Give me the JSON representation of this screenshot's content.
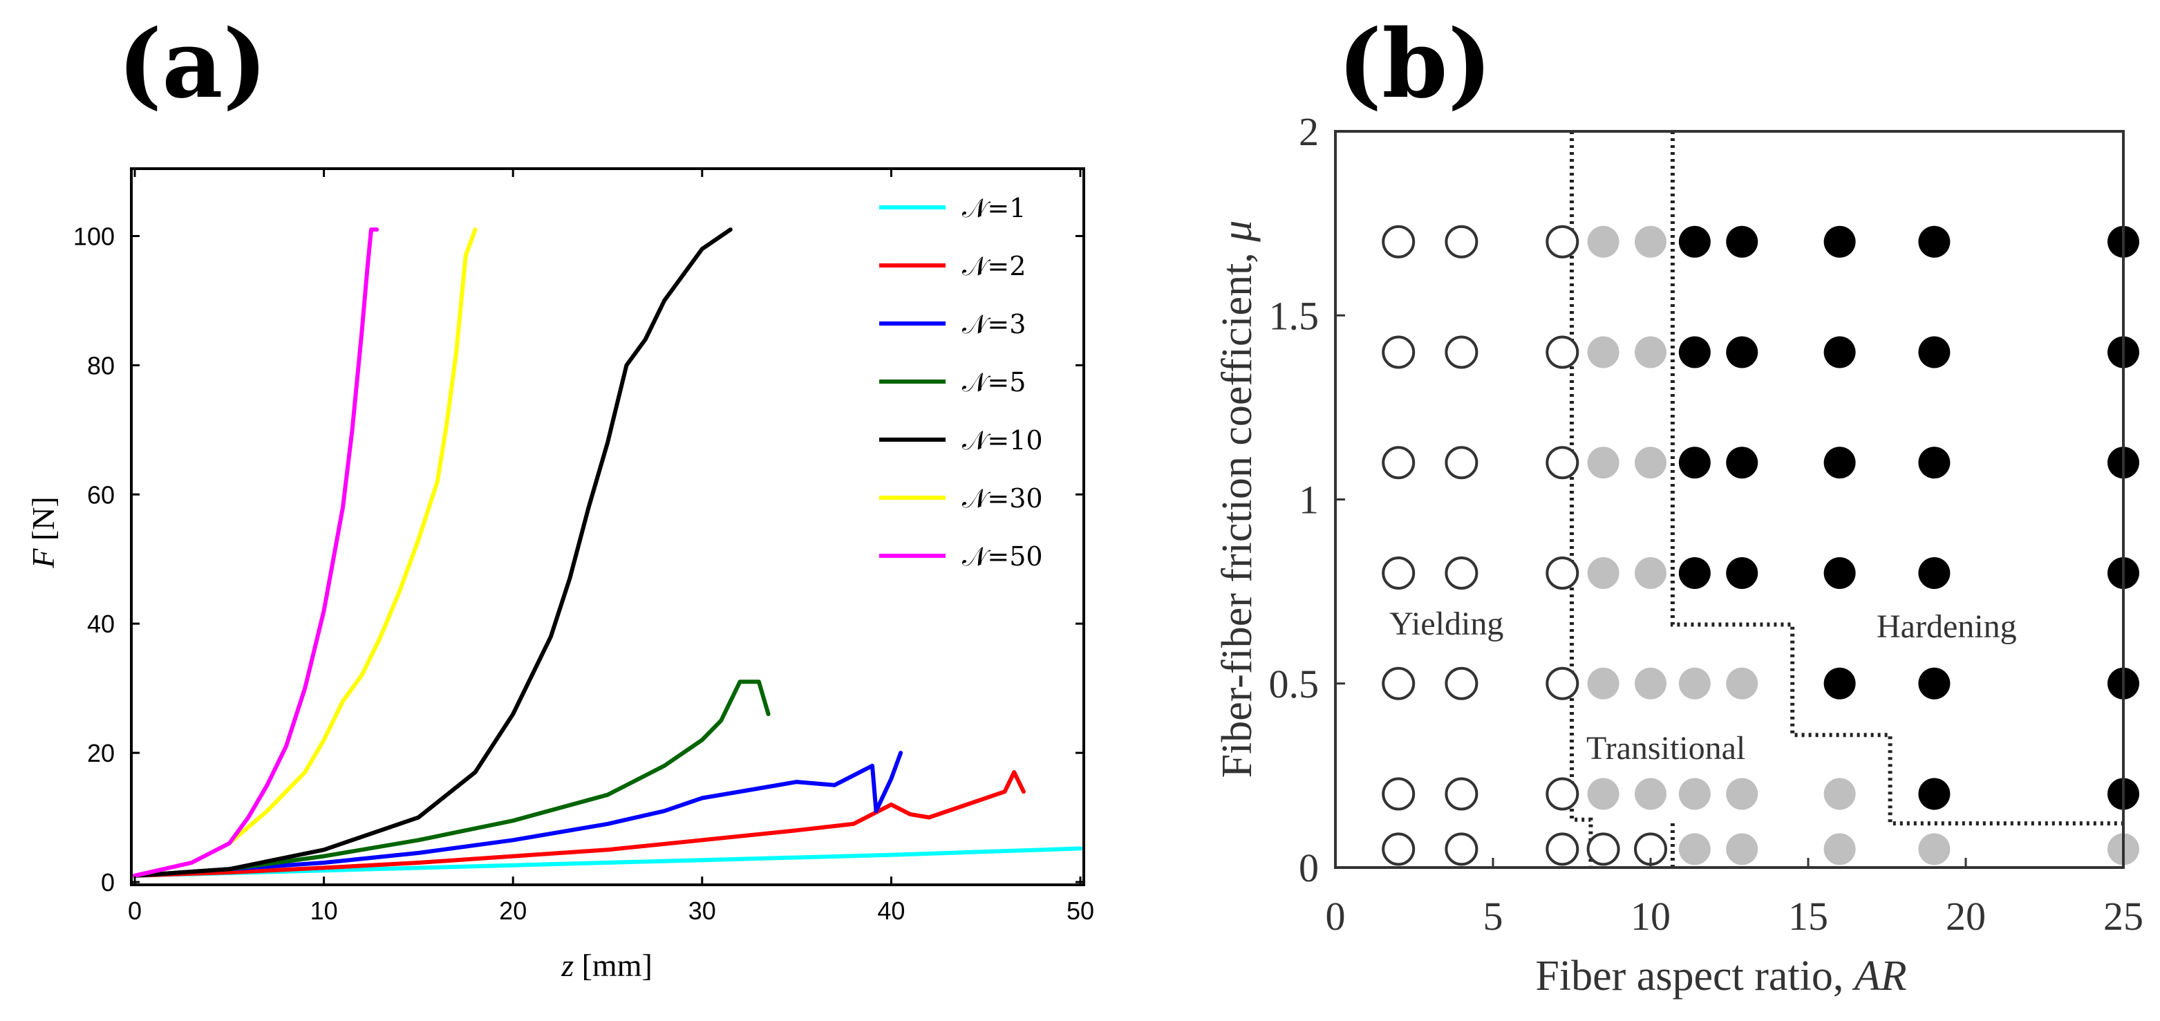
{
  "panels": {
    "a": "(a)",
    "b": "(b)"
  },
  "chart_data": [
    {
      "type": "line",
      "xlabel_italic": "z",
      "xlabel_unit": " [mm]",
      "ylabel_italic": "F",
      "ylabel_unit": " [N]",
      "xlim": [
        0,
        50
      ],
      "ylim": [
        0,
        110
      ],
      "xticks": [
        0,
        10,
        20,
        30,
        40,
        50
      ],
      "yticks": [
        0,
        20,
        40,
        60,
        80,
        100
      ],
      "legend_position": "top-right",
      "series": [
        {
          "name": "𝒩=1",
          "color": "#00ffff",
          "points": [
            [
              0,
              1
            ],
            [
              10,
              1.8
            ],
            [
              20,
              2.6
            ],
            [
              30,
              3.4
            ],
            [
              40,
              4.2
            ],
            [
              50,
              5.2
            ]
          ]
        },
        {
          "name": "𝒩=2",
          "color": "#ff0000",
          "points": [
            [
              0,
              1
            ],
            [
              5,
              1.5
            ],
            [
              10,
              2.2
            ],
            [
              15,
              3
            ],
            [
              20,
              4
            ],
            [
              25,
              5
            ],
            [
              30,
              6.5
            ],
            [
              35,
              8
            ],
            [
              38,
              9
            ],
            [
              40,
              12
            ],
            [
              41,
              10.5
            ],
            [
              42,
              10
            ],
            [
              44,
              12
            ],
            [
              46,
              14
            ],
            [
              46.5,
              17
            ],
            [
              47,
              14
            ]
          ]
        },
        {
          "name": "𝒩=3",
          "color": "#0000ff",
          "points": [
            [
              0,
              1
            ],
            [
              5,
              2
            ],
            [
              10,
              3
            ],
            [
              15,
              4.5
            ],
            [
              20,
              6.5
            ],
            [
              25,
              9
            ],
            [
              28,
              11
            ],
            [
              30,
              13
            ],
            [
              33,
              14.5
            ],
            [
              35,
              15.5
            ],
            [
              37,
              15
            ],
            [
              39,
              18
            ],
            [
              39.2,
              11
            ],
            [
              40,
              16
            ],
            [
              40.5,
              20
            ]
          ]
        },
        {
          "name": "𝒩=5",
          "color": "#006400",
          "points": [
            [
              0,
              1
            ],
            [
              5,
              2
            ],
            [
              10,
              4
            ],
            [
              15,
              6.5
            ],
            [
              20,
              9.5
            ],
            [
              25,
              13.5
            ],
            [
              28,
              18
            ],
            [
              30,
              22
            ],
            [
              31,
              25
            ],
            [
              32,
              31
            ],
            [
              33,
              31
            ],
            [
              33.5,
              26
            ]
          ]
        },
        {
          "name": "𝒩=10",
          "color": "#000000",
          "points": [
            [
              0,
              1
            ],
            [
              5,
              2
            ],
            [
              10,
              5
            ],
            [
              15,
              10
            ],
            [
              18,
              17
            ],
            [
              20,
              26
            ],
            [
              22,
              38
            ],
            [
              23,
              47
            ],
            [
              24,
              58
            ],
            [
              25,
              68
            ],
            [
              26,
              80
            ],
            [
              27,
              84
            ],
            [
              28,
              90
            ],
            [
              29,
              94
            ],
            [
              30,
              98
            ],
            [
              31.5,
              101
            ]
          ]
        },
        {
          "name": "𝒩=30",
          "color": "#ffff00",
          "points": [
            [
              0,
              1
            ],
            [
              3,
              3
            ],
            [
              5,
              6
            ],
            [
              7,
              11
            ],
            [
              9,
              17
            ],
            [
              10,
              22
            ],
            [
              11,
              28
            ],
            [
              12,
              32
            ],
            [
              13,
              38
            ],
            [
              14,
              45
            ],
            [
              15,
              53
            ],
            [
              16,
              62
            ],
            [
              16.5,
              71
            ],
            [
              17,
              82
            ],
            [
              17.5,
              97
            ],
            [
              18,
              101
            ]
          ]
        },
        {
          "name": "𝒩=50",
          "color": "#ff00ff",
          "points": [
            [
              0,
              1
            ],
            [
              3,
              3
            ],
            [
              5,
              6
            ],
            [
              6,
              10
            ],
            [
              7,
              15
            ],
            [
              8,
              21
            ],
            [
              9,
              30
            ],
            [
              10,
              42
            ],
            [
              11,
              58
            ],
            [
              11.5,
              70
            ],
            [
              12,
              85
            ],
            [
              12.3,
              95
            ],
            [
              12.5,
              101
            ],
            [
              12.8,
              101
            ]
          ]
        }
      ]
    },
    {
      "type": "scatter",
      "xlabel_text": "Fiber aspect ratio, ",
      "xlabel_italic": "AR",
      "ylabel_text": "Fiber-fiber friction coefficient, ",
      "ylabel_italic": "μ",
      "xlim": [
        0,
        25
      ],
      "ylim": [
        0,
        2
      ],
      "xticks": [
        0,
        5,
        10,
        15,
        20,
        25
      ],
      "yticks": [
        {
          "v": 0,
          "label": "0"
        },
        {
          "v": 0.5,
          "label": "0.5"
        },
        {
          "v": 1,
          "label": "1"
        },
        {
          "v": 1.5,
          "label": "1.5"
        },
        {
          "v": 2,
          "label": "2"
        }
      ],
      "regions": [
        "Yielding",
        "Transitional",
        "Hardening"
      ],
      "legend_map": {
        "Y": "Yielding",
        "T": "Transitional",
        "H": "Hardening"
      },
      "x_values": [
        2,
        4,
        7.2,
        8.5,
        10,
        11.4,
        12.9,
        16,
        19,
        25
      ],
      "rows": [
        {
          "mu": 1.7,
          "states": [
            "Y",
            "Y",
            "Y",
            "T",
            "T",
            "H",
            "H",
            "H",
            "H",
            "H"
          ]
        },
        {
          "mu": 1.4,
          "states": [
            "Y",
            "Y",
            "Y",
            "T",
            "T",
            "H",
            "H",
            "H",
            "H",
            "H"
          ]
        },
        {
          "mu": 1.1,
          "states": [
            "Y",
            "Y",
            "Y",
            "T",
            "T",
            "H",
            "H",
            "H",
            "H",
            "H"
          ]
        },
        {
          "mu": 0.8,
          "states": [
            "Y",
            "Y",
            "Y",
            "T",
            "T",
            "H",
            "H",
            "H",
            "H",
            "H"
          ]
        },
        {
          "mu": 0.5,
          "states": [
            "Y",
            "Y",
            "Y",
            "T",
            "T",
            "T",
            "T",
            "H",
            "H",
            "H"
          ]
        },
        {
          "mu": 0.2,
          "states": [
            "Y",
            "Y",
            "Y",
            "T",
            "T",
            "T",
            "T",
            "T",
            "H",
            "H"
          ]
        },
        {
          "mu": 0.05,
          "states": [
            "Y",
            "Y",
            "Y",
            "Y",
            "Y",
            "T",
            "T",
            "T",
            "T",
            "T"
          ]
        }
      ],
      "boundaries": [
        [
          [
            7.5,
            2
          ],
          [
            7.5,
            0.13
          ],
          [
            8.1,
            0.13
          ],
          [
            8.1,
            0
          ]
        ],
        [
          [
            10.7,
            2
          ],
          [
            10.7,
            0.66
          ],
          [
            14.5,
            0.66
          ],
          [
            14.5,
            0.36
          ],
          [
            17.6,
            0.36
          ],
          [
            17.6,
            0.12
          ],
          [
            25,
            0.12
          ]
        ],
        [
          [
            10.7,
            0
          ],
          [
            10.7,
            0.13
          ]
        ]
      ]
    }
  ]
}
